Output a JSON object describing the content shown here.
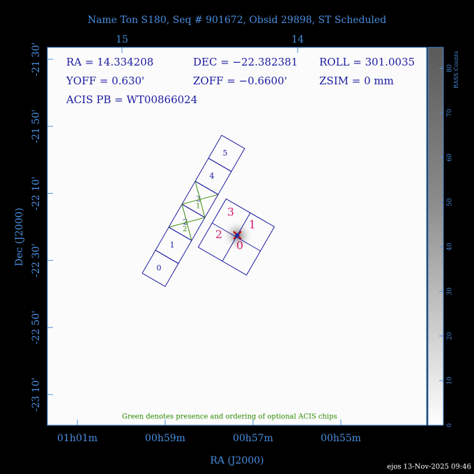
{
  "title": "Name Ton S180, Seq # 901672, Obsid 29898, ST Scheduled",
  "top_axis": {
    "ticks": [
      "15",
      "14"
    ]
  },
  "left_axis": {
    "label": "Dec (J2000)",
    "ticks": [
      "-21 30'",
      "-21 50'",
      "-22 10'",
      "-22 30'",
      "-22 50'",
      "-23 10'"
    ]
  },
  "bottom_axis": {
    "label": "RA (J2000)",
    "ticks": [
      "01h01m",
      "00h59m",
      "00h57m",
      "00h55m"
    ]
  },
  "info": {
    "rows": [
      [
        "RA = 14.334208",
        "DEC = −22.382381",
        "ROLL = 301.0035"
      ],
      [
        "YOFF =    0.630'",
        "ZOFF = −0.6600'",
        "ZSIM = 0 mm"
      ],
      [
        "ACIS PB = WT00866024"
      ]
    ]
  },
  "colorbar": {
    "label": "RASS Counts",
    "ticks": [
      "0",
      "10",
      "20",
      "30",
      "40",
      "50",
      "60",
      "70",
      "80"
    ]
  },
  "chips": {
    "acis_s": [
      "0",
      "1",
      "2",
      "3",
      "4",
      "5"
    ],
    "acis_i": [
      "3",
      "1",
      "2",
      "0"
    ],
    "optional": [
      "2",
      "1"
    ]
  },
  "note": "Green denotes presence and ordering of optional ACIS chips",
  "footer": "ejos 13-Nov-2025 09:46"
}
